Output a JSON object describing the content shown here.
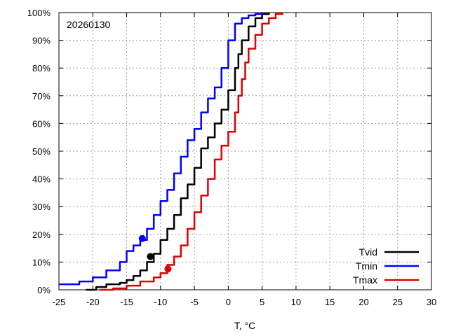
{
  "chart_data": {
    "type": "line",
    "annotation": "20260130",
    "xlabel": "T, °C",
    "ylabel": "",
    "xlim": [
      -25,
      30
    ],
    "ylim": [
      0,
      100
    ],
    "xticks": [
      -25,
      -20,
      -15,
      -10,
      -5,
      0,
      5,
      10,
      15,
      20,
      25,
      30
    ],
    "xtick_labels": [
      "-25",
      "-20",
      "-15",
      "-10",
      "-5",
      "0",
      "5",
      "10",
      "15",
      "20",
      "25",
      "30"
    ],
    "yticks": [
      0,
      10,
      20,
      30,
      40,
      50,
      60,
      70,
      80,
      90,
      100
    ],
    "ytick_labels": [
      "0%",
      "10%",
      "20%",
      "30%",
      "40%",
      "50%",
      "60%",
      "70%",
      "80%",
      "90%",
      "100%"
    ],
    "grid": true,
    "legend_position": "bottom-right",
    "series": [
      {
        "name": "Tvid",
        "color": "#000000",
        "x": [
          -21,
          -19.5,
          -18,
          -16,
          -15,
          -14,
          -13,
          -12,
          -11,
          -10,
          -9,
          -8,
          -7,
          -6,
          -5,
          -4,
          -3,
          -2,
          -1,
          0,
          1,
          1.5,
          2,
          3,
          4,
          5,
          6
        ],
        "y": [
          0,
          1,
          2,
          2.5,
          3.5,
          5,
          7,
          10,
          13,
          18,
          22,
          27,
          33,
          38,
          44,
          51,
          55,
          60,
          65,
          72,
          80,
          85,
          90,
          95,
          98,
          99.5,
          100
        ],
        "marker": {
          "x": -11.5,
          "y": 12
        }
      },
      {
        "name": "Tmin",
        "color": "#0000ff",
        "x": [
          -25,
          -22,
          -20,
          -18,
          -16,
          -15,
          -14,
          -13,
          -12,
          -11,
          -10,
          -9,
          -8,
          -7,
          -6,
          -5,
          -4,
          -3,
          -2,
          -1,
          0,
          1,
          2,
          3,
          4,
          5
        ],
        "y": [
          2,
          3,
          4.5,
          7,
          10,
          14,
          16,
          18,
          22,
          27,
          32,
          36,
          42,
          48,
          54,
          58,
          64,
          69,
          73,
          80,
          90,
          96,
          98,
          99,
          99.5,
          100
        ],
        "marker": {
          "x": -12.7,
          "y": 18.5
        }
      },
      {
        "name": "Tmax",
        "color": "#e00000",
        "x": [
          -19,
          -17,
          -15,
          -13,
          -11,
          -10,
          -9,
          -8,
          -7,
          -6,
          -5,
          -4,
          -3,
          -2,
          -1,
          0,
          1,
          1.5,
          2,
          2.5,
          3,
          4,
          5,
          6,
          7,
          8
        ],
        "y": [
          0,
          0.5,
          1.5,
          3,
          4.5,
          6,
          9,
          12,
          16,
          22,
          28,
          34,
          40,
          47,
          52,
          57,
          64,
          70,
          76,
          82,
          87,
          92,
          96,
          98,
          99.5,
          100
        ],
        "marker": {
          "x": -8.9,
          "y": 7.5
        }
      }
    ]
  }
}
